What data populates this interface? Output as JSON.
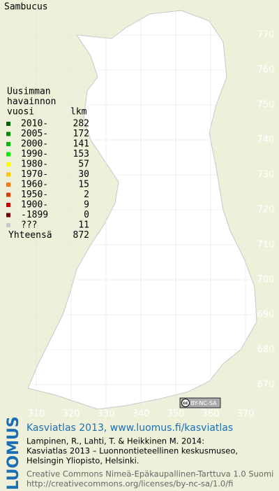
{
  "title": "Sambucus",
  "legend": {
    "heading": [
      "Uusimman",
      "havainnon",
      "vuosi"
    ],
    "count_heading": "lkm",
    "items": [
      {
        "label": "2010-",
        "count": 282,
        "color": "#006400"
      },
      {
        "label": "2005-",
        "count": 172,
        "color": "#008c00"
      },
      {
        "label": "2000-",
        "count": 141,
        "color": "#00c000"
      },
      {
        "label": "1990-",
        "count": 153,
        "color": "#00f000"
      },
      {
        "label": "1980-",
        "count": 57,
        "color": "#ffff00"
      },
      {
        "label": "1970-",
        "count": 30,
        "color": "#ffc800"
      },
      {
        "label": "1960-",
        "count": 15,
        "color": "#ff7800"
      },
      {
        "label": "1950-",
        "count": 2,
        "color": "#e03c00"
      },
      {
        "label": "1900-",
        "count": 9,
        "color": "#c80000"
      },
      {
        "label": "-1899",
        "count": 0,
        "color": "#780000"
      },
      {
        "label": "???",
        "count": 11,
        "color": "#c8c8c8"
      }
    ],
    "total_label": "Yhteensä",
    "total": 872
  },
  "map": {
    "xticks": [
      310,
      320,
      330,
      340,
      350,
      360,
      370
    ],
    "yticks": [
      670,
      680,
      690,
      700,
      710,
      720,
      730,
      740,
      750,
      760,
      770
    ]
  },
  "badge": [
    "cc",
    "BY-NC-SA"
  ],
  "footer": {
    "logo": "LUOMUS",
    "headline": "Kasviatlas 2013, www.luomus.fi/kasviatlas",
    "citation": [
      "Lampinen, R., Lahti, T. & Heikkinen M. 2014:",
      "Kasviatlas 2013 – Luonnontieteellinen keskusmuseo,",
      "Helsingin Yliopisto, Helsinki."
    ],
    "license": [
      "Creative Commons Nimeä-Epäkaupallinen-Tarttuva 1.0 Suomi",
      "http://creativecommons.org/licenses/by-nc-sa/1.0/fi"
    ]
  }
}
